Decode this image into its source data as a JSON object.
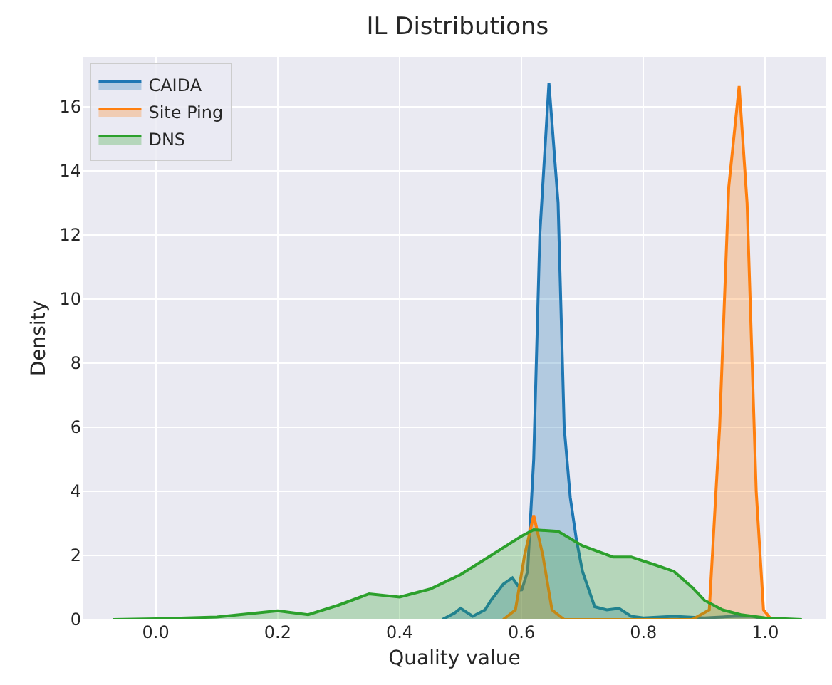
{
  "chart_data": {
    "type": "area",
    "title": "IL Distributions",
    "xlabel": "Quality value",
    "ylabel": "Density",
    "series": [
      {
        "name": "CAIDA",
        "color": "#1f77b4",
        "x": [
          0.47,
          0.49,
          0.5,
          0.52,
          0.54,
          0.55,
          0.57,
          0.585,
          0.6,
          0.61,
          0.62,
          0.63,
          0.645,
          0.66,
          0.67,
          0.68,
          0.69,
          0.7,
          0.72,
          0.74,
          0.76,
          0.78,
          0.8,
          0.85,
          0.9,
          0.95,
          0.98,
          1.0
        ],
        "values": [
          0,
          0.2,
          0.35,
          0.1,
          0.3,
          0.6,
          1.1,
          1.3,
          0.9,
          1.5,
          5,
          12,
          16.74,
          13,
          6,
          3.8,
          2.5,
          1.5,
          0.4,
          0.3,
          0.35,
          0.1,
          0.05,
          0.1,
          0.05,
          0.1,
          0.1,
          0
        ]
      },
      {
        "name": "Site Ping",
        "color": "#ff7f0e",
        "x": [
          0.57,
          0.59,
          0.605,
          0.62,
          0.635,
          0.65,
          0.67,
          0.88,
          0.908,
          0.925,
          0.94,
          0.957,
          0.97,
          0.985,
          0.997,
          1.01
        ],
        "values": [
          0,
          0.3,
          2,
          3.25,
          2,
          0.3,
          0,
          0,
          0.3,
          6,
          13.5,
          16.64,
          13,
          4,
          0.3,
          0
        ]
      },
      {
        "name": "DNS",
        "color": "#2ca02c",
        "x": [
          -0.07,
          0.0,
          0.1,
          0.2,
          0.25,
          0.3,
          0.35,
          0.4,
          0.45,
          0.5,
          0.55,
          0.6,
          0.62,
          0.66,
          0.7,
          0.75,
          0.78,
          0.82,
          0.85,
          0.88,
          0.9,
          0.93,
          0.96,
          1.0,
          1.06
        ],
        "values": [
          0,
          0.02,
          0.08,
          0.27,
          0.15,
          0.45,
          0.8,
          0.7,
          0.95,
          1.4,
          2.0,
          2.6,
          2.8,
          2.75,
          2.3,
          1.95,
          1.95,
          1.7,
          1.5,
          1.0,
          0.6,
          0.3,
          0.15,
          0.05,
          0
        ]
      }
    ],
    "xlim": [
      -0.12,
      1.1
    ],
    "ylim": [
      0,
      17.55
    ],
    "xticks": [
      {
        "value": 0,
        "label": "0.0"
      },
      0.2,
      0.4,
      0.6,
      0.8,
      {
        "value": 1,
        "label": "1.0"
      }
    ],
    "yticks": [
      0,
      2,
      4,
      6,
      8,
      10,
      12,
      14,
      16
    ],
    "grid": true,
    "legend": "top left"
  }
}
